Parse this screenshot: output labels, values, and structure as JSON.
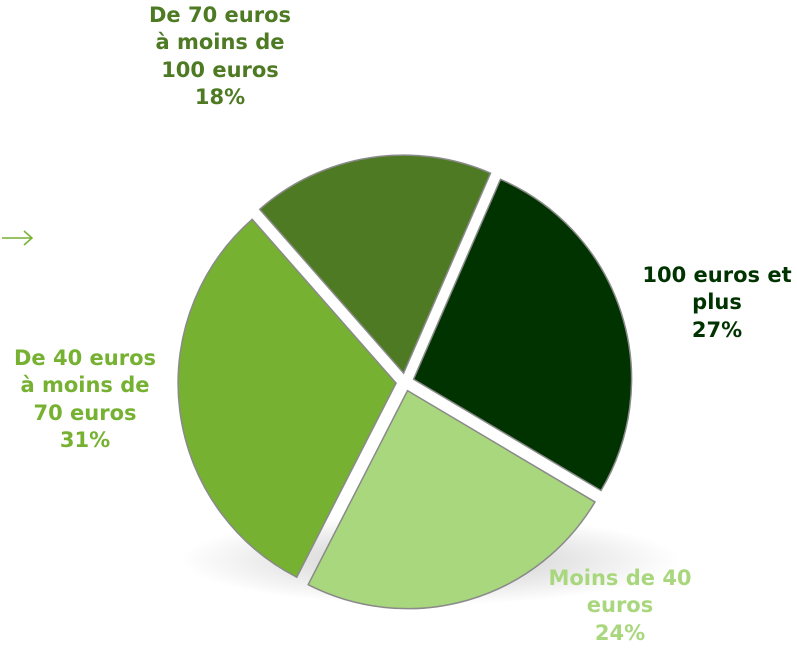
{
  "chart_data": {
    "type": "pie",
    "categories": [
      "100 euros et plus",
      "Moins de 40 euros",
      "De 40 euros à moins de 70 euros",
      "De 70 euros à moins de 100 euros"
    ],
    "values": [
      27,
      24,
      31,
      18
    ],
    "value_labels": [
      "27%",
      "24%",
      "31%",
      "18%"
    ],
    "colors": [
      "#003300",
      "#a9d77d",
      "#76b132",
      "#4e7a24"
    ]
  }
}
